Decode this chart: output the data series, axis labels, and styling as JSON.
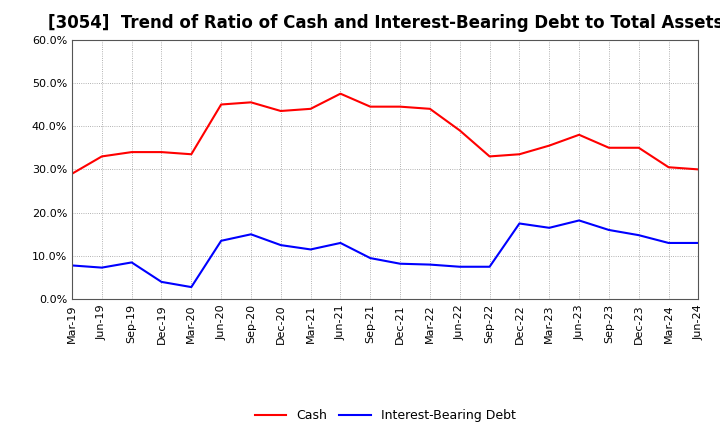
{
  "title": "[3054]  Trend of Ratio of Cash and Interest-Bearing Debt to Total Assets",
  "x_labels": [
    "Mar-19",
    "Jun-19",
    "Sep-19",
    "Dec-19",
    "Mar-20",
    "Jun-20",
    "Sep-20",
    "Dec-20",
    "Mar-21",
    "Jun-21",
    "Sep-21",
    "Dec-21",
    "Mar-22",
    "Jun-22",
    "Sep-22",
    "Dec-22",
    "Mar-23",
    "Jun-23",
    "Sep-23",
    "Dec-23",
    "Mar-24",
    "Jun-24"
  ],
  "cash": [
    0.29,
    0.33,
    0.34,
    0.34,
    0.335,
    0.45,
    0.455,
    0.435,
    0.44,
    0.475,
    0.445,
    0.445,
    0.44,
    0.39,
    0.33,
    0.335,
    0.355,
    0.38,
    0.35,
    0.35,
    0.305,
    0.3
  ],
  "debt": [
    0.078,
    0.073,
    0.085,
    0.04,
    0.028,
    0.135,
    0.15,
    0.125,
    0.115,
    0.13,
    0.095,
    0.082,
    0.08,
    0.075,
    0.075,
    0.175,
    0.165,
    0.182,
    0.16,
    0.148,
    0.13,
    0.13
  ],
  "cash_color": "#FF0000",
  "debt_color": "#0000FF",
  "background_color": "#FFFFFF",
  "plot_bg_color": "#FFFFFF",
  "grid_color": "#999999",
  "border_color": "#555555",
  "ylim": [
    0.0,
    0.6
  ],
  "yticks": [
    0.0,
    0.1,
    0.2,
    0.3,
    0.4,
    0.5,
    0.6
  ],
  "line_width": 1.5,
  "title_fontsize": 12,
  "tick_fontsize": 8,
  "legend_fontsize": 9
}
